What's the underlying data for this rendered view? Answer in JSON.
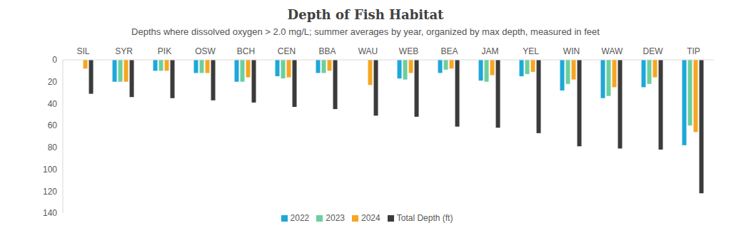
{
  "chart_data": {
    "type": "bar",
    "title": "Depth of Fish Habitat",
    "subtitle": "Depths where dissolved oxygen > 2.0 mg/L; summer averages by year, organized by max depth, measured in feet",
    "categories": [
      "SIL",
      "SYR",
      "PIK",
      "OSW",
      "BCH",
      "CEN",
      "BBA",
      "WAU",
      "WEB",
      "BEA",
      "JAM",
      "YEL",
      "WIN",
      "WAW",
      "DEW",
      "TIP"
    ],
    "series": [
      {
        "name": "2022",
        "color": "#1ea7d9",
        "values": [
          null,
          20,
          10,
          12,
          20,
          15,
          12,
          null,
          17,
          12,
          19,
          15,
          28,
          35,
          25,
          78
        ]
      },
      {
        "name": "2023",
        "color": "#6ccf9c",
        "values": [
          null,
          20,
          10,
          12,
          20,
          17,
          12,
          null,
          18,
          9,
          20,
          13,
          22,
          33,
          22,
          60
        ]
      },
      {
        "name": "2024",
        "color": "#f6a623",
        "values": [
          8,
          20,
          10,
          12,
          16,
          16,
          10,
          23,
          12,
          8,
          14,
          11,
          18,
          25,
          16,
          66
        ]
      },
      {
        "name": "Total Depth (ft)",
        "color": "#3b3b3b",
        "values": [
          31,
          34,
          35,
          37,
          39,
          43,
          45,
          51,
          52,
          61,
          62,
          67,
          79,
          81,
          82,
          122
        ]
      }
    ],
    "ylim": [
      0,
      140
    ],
    "yticks": [
      0,
      20,
      40,
      60,
      80,
      100,
      120,
      140
    ],
    "grid": false,
    "legend": "bottom"
  }
}
